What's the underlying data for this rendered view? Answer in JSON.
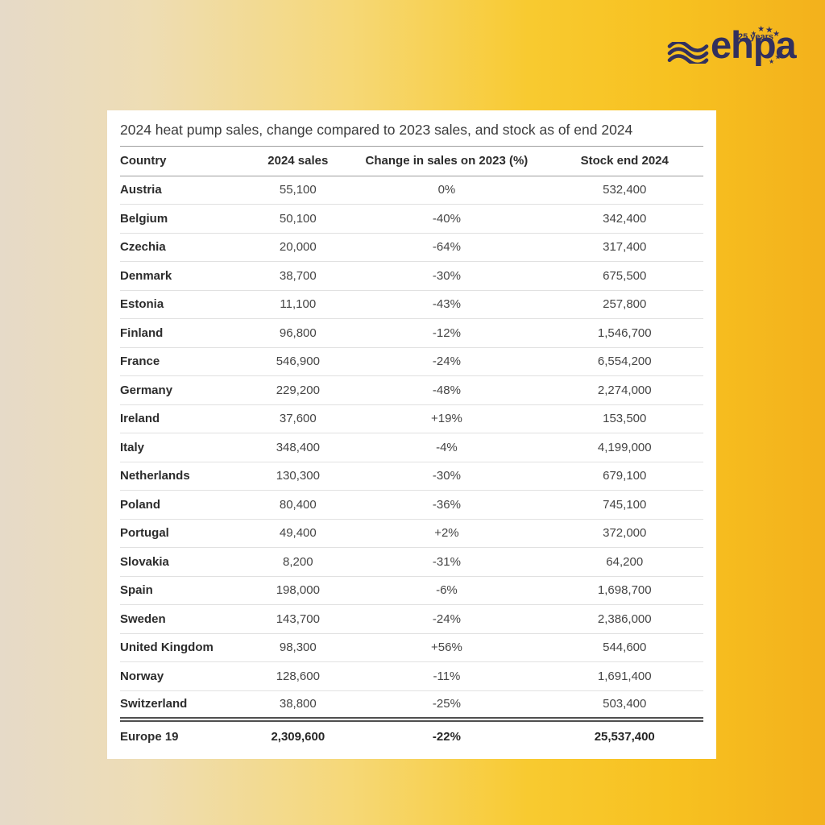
{
  "logo": {
    "brand": "ehpa",
    "years_text": "25 years",
    "star_glyph": "★",
    "wave_icon": "waves-icon",
    "star_count": 9
  },
  "colors": {
    "brand_navy": "#32305e",
    "background_left": "#e6dac8",
    "background_mid": "#f6d878",
    "background_right": "#f3b11c",
    "card_background": "#ffffff",
    "title_text": "#3b3b3b",
    "body_text": "#454545",
    "separator": "#e1e1e1",
    "strong_line": "#9e9e9e",
    "total_line": "#4f4f4f"
  },
  "chart_data": {
    "type": "table",
    "title": "2024 heat pump sales, change compared to 2023 sales, and stock as of end 2024",
    "columns": [
      "Country",
      "2024 sales",
      "Change in sales on 2023 (%)",
      "Stock end 2024"
    ],
    "rows": [
      {
        "country": "Austria",
        "sales": "55,100",
        "change": "0%",
        "stock": "532,400"
      },
      {
        "country": "Belgium",
        "sales": "50,100",
        "change": "-40%",
        "stock": "342,400"
      },
      {
        "country": "Czechia",
        "sales": "20,000",
        "change": "-64%",
        "stock": "317,400"
      },
      {
        "country": "Denmark",
        "sales": "38,700",
        "change": "-30%",
        "stock": "675,500"
      },
      {
        "country": "Estonia",
        "sales": "11,100",
        "change": "-43%",
        "stock": "257,800"
      },
      {
        "country": "Finland",
        "sales": "96,800",
        "change": "-12%",
        "stock": "1,546,700"
      },
      {
        "country": "France",
        "sales": "546,900",
        "change": "-24%",
        "stock": "6,554,200"
      },
      {
        "country": "Germany",
        "sales": "229,200",
        "change": "-48%",
        "stock": "2,274,000"
      },
      {
        "country": "Ireland",
        "sales": "37,600",
        "change": "+19%",
        "stock": "153,500"
      },
      {
        "country": "Italy",
        "sales": "348,400",
        "change": "-4%",
        "stock": "4,199,000"
      },
      {
        "country": "Netherlands",
        "sales": "130,300",
        "change": "-30%",
        "stock": "679,100"
      },
      {
        "country": "Poland",
        "sales": "80,400",
        "change": "-36%",
        "stock": "745,100"
      },
      {
        "country": "Portugal",
        "sales": "49,400",
        "change": "+2%",
        "stock": "372,000"
      },
      {
        "country": "Slovakia",
        "sales": "8,200",
        "change": "-31%",
        "stock": "64,200"
      },
      {
        "country": "Spain",
        "sales": "198,000",
        "change": "-6%",
        "stock": "1,698,700"
      },
      {
        "country": "Sweden",
        "sales": "143,700",
        "change": "-24%",
        "stock": "2,386,000"
      },
      {
        "country": "United Kingdom",
        "sales": "98,300",
        "change": "+56%",
        "stock": "544,600"
      },
      {
        "country": "Norway",
        "sales": "128,600",
        "change": "-11%",
        "stock": "1,691,400"
      },
      {
        "country": "Switzerland",
        "sales": "38,800",
        "change": "-25%",
        "stock": "503,400"
      }
    ],
    "total_row": {
      "country": "Europe 19",
      "sales": "2,309,600",
      "change": "-22%",
      "stock": "25,537,400"
    }
  }
}
